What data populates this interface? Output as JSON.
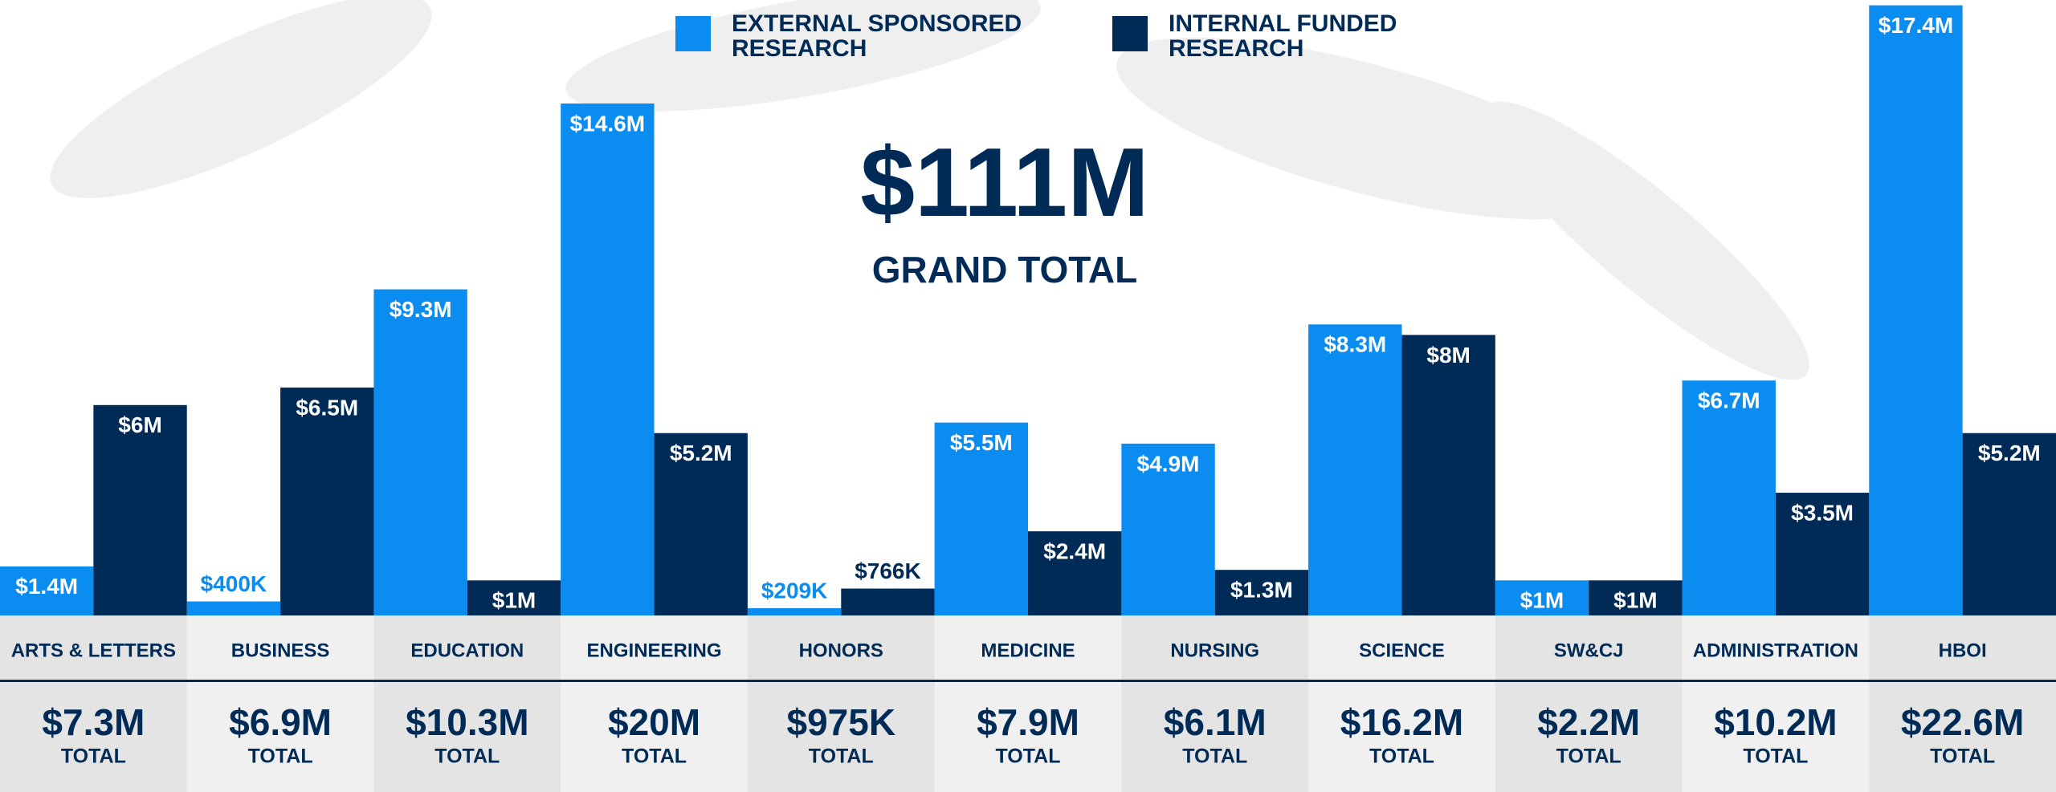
{
  "chart_data": {
    "type": "bar",
    "grand_total": "$111M",
    "grand_total_caption": "GRAND TOTAL",
    "categories": [
      "ARTS & LETTERS",
      "BUSINESS",
      "EDUCATION",
      "ENGINEERING",
      "HONORS",
      "MEDICINE",
      "NURSING",
      "SCIENCE",
      "SW&CJ",
      "ADMINISTRATION",
      "HBOI"
    ],
    "series": [
      {
        "name": "EXTERNAL SPONSORED RESEARCH",
        "color": "#0a8cf0",
        "values": [
          1.4,
          0.4,
          9.3,
          14.6,
          0.209,
          5.5,
          4.9,
          8.3,
          1,
          6.7,
          17.4
        ],
        "value_labels": [
          "$1.4M",
          "$400K",
          "$9.3M",
          "$14.6M",
          "$209K",
          "$5.5M",
          "$4.9M",
          "$8.3M",
          "$1M",
          "$6.7M",
          "$17.4M"
        ]
      },
      {
        "name": "INTERNAL FUNDED RESEARCH",
        "color": "#002b57",
        "values": [
          6,
          6.5,
          1,
          5.2,
          0.766,
          2.4,
          1.3,
          8,
          1,
          3.5,
          5.2
        ],
        "value_labels": [
          "$6M",
          "$6.5M",
          "$1M",
          "$5.2M",
          "$766K",
          "$2.4M",
          "$1.3M",
          "$8M",
          "$1M",
          "$3.5M",
          "$5.2M"
        ]
      }
    ],
    "totals": [
      "$7.3M",
      "$6.9M",
      "$10.3M",
      "$20M",
      "$975K",
      "$7.9M",
      "$6.1M",
      "$16.2M",
      "$2.2M",
      "$10.2M",
      "$22.6M"
    ],
    "total_caption": "TOTAL"
  }
}
